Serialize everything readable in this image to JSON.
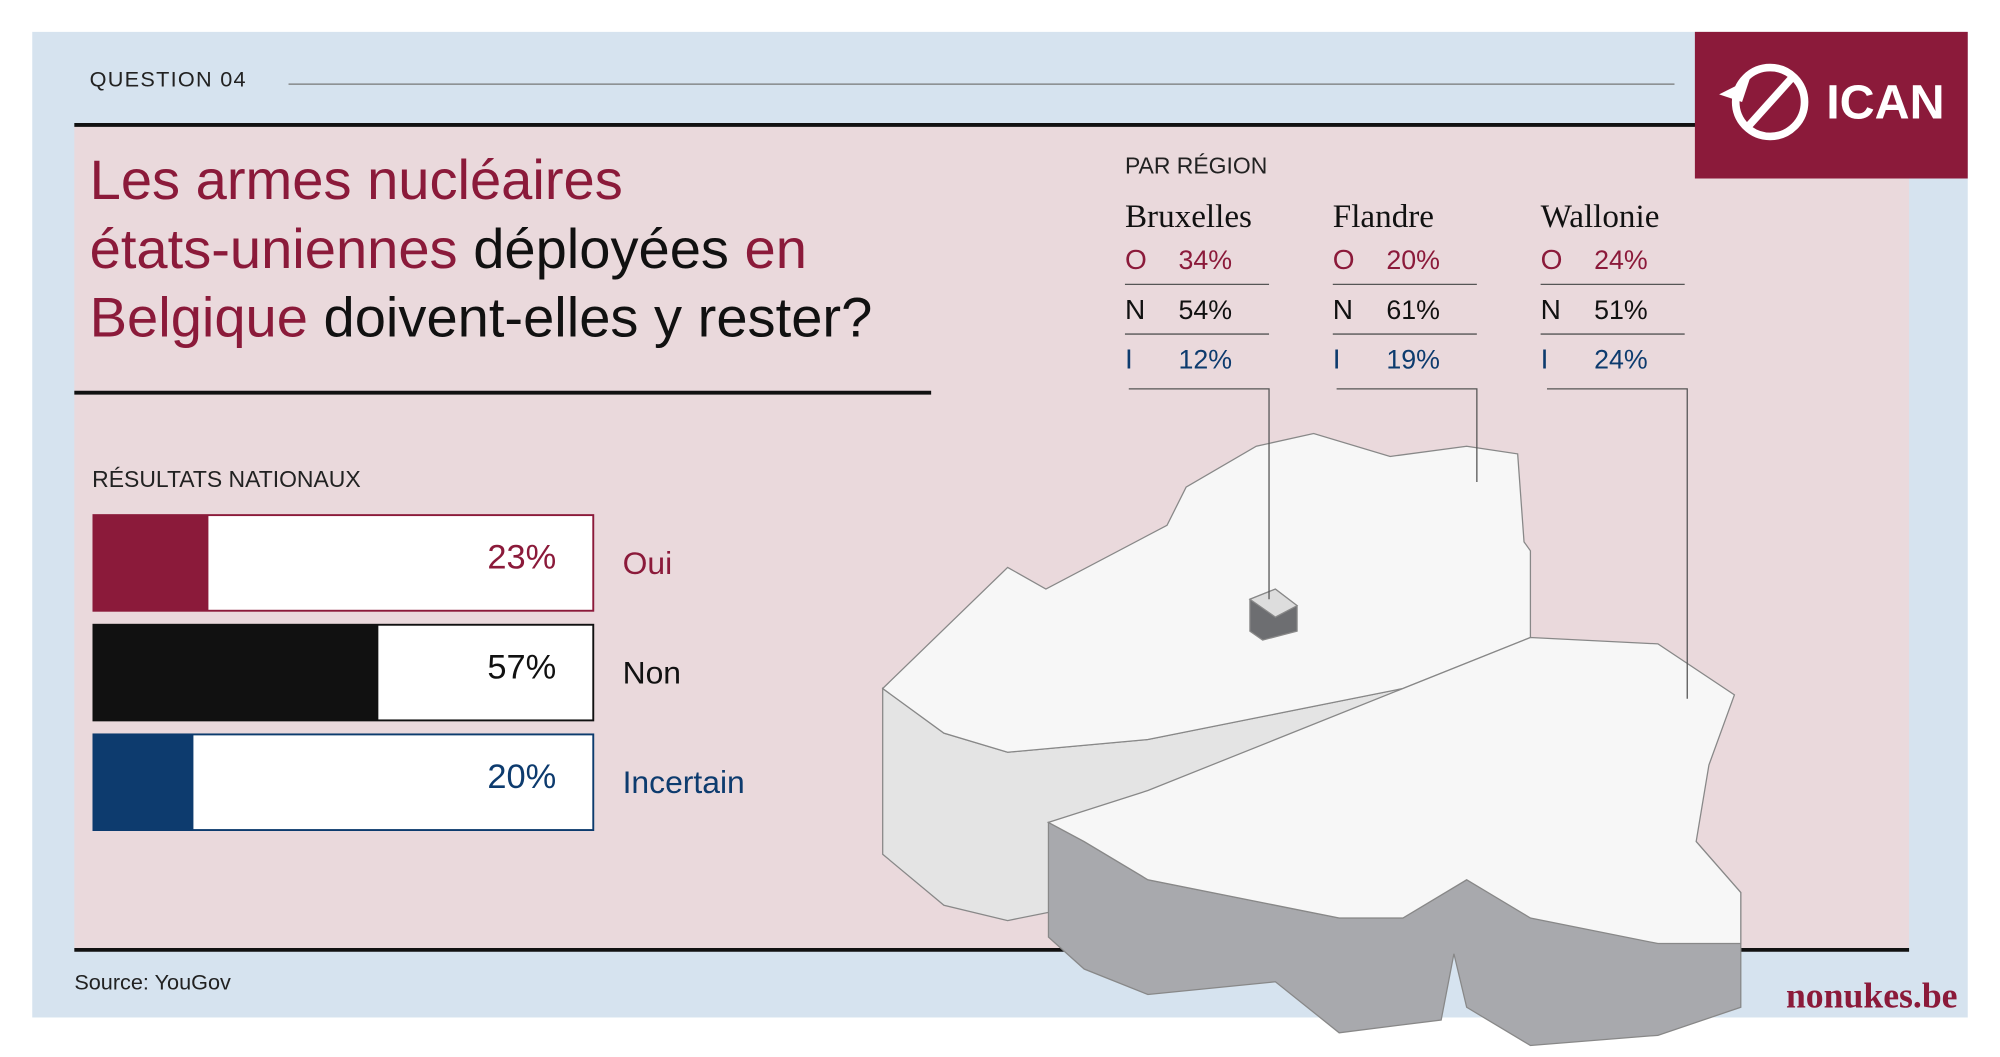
{
  "question_label": "QUESTION 04",
  "logo": "ICAN",
  "title_lines": [
    [
      {
        "text": "Les armes nucléaires",
        "accent": true
      }
    ],
    [
      {
        "text": "états-uniennes",
        "accent": true
      },
      {
        "text": " déployées",
        "accent": false
      },
      {
        "text": " en",
        "accent": true
      }
    ],
    [
      {
        "text": "Belgique",
        "accent": true
      },
      {
        "text": " doivent-elles y rester?",
        "accent": false
      }
    ]
  ],
  "chart_data": {
    "type": "bar",
    "orientation": "horizontal",
    "title": "RÉSULTATS NATIONAUX",
    "categories": [
      "Oui",
      "Non",
      "Incertain"
    ],
    "values": [
      23,
      57,
      20
    ],
    "value_labels": [
      "23%",
      "57%",
      "20%"
    ],
    "colors": [
      "#8b1a3a",
      "#111111",
      "#0d3b6e"
    ],
    "xlim": [
      0,
      100
    ]
  },
  "regions": {
    "title": "PAR RÉGION",
    "items": [
      {
        "name": "Bruxelles",
        "rows": [
          {
            "code": "O",
            "value": "34%",
            "color": "#8b1a3a"
          },
          {
            "code": "N",
            "value": "54%",
            "color": "#111111"
          },
          {
            "code": "I",
            "value": "12%",
            "color": "#0d3b6e"
          }
        ]
      },
      {
        "name": "Flandre",
        "rows": [
          {
            "code": "O",
            "value": "20%",
            "color": "#8b1a3a"
          },
          {
            "code": "N",
            "value": "61%",
            "color": "#111111"
          },
          {
            "code": "I",
            "value": "19%",
            "color": "#0d3b6e"
          }
        ]
      },
      {
        "name": "Wallonie",
        "rows": [
          {
            "code": "O",
            "value": "24%",
            "color": "#8b1a3a"
          },
          {
            "code": "N",
            "value": "51%",
            "color": "#111111"
          },
          {
            "code": "I",
            "value": "24%",
            "color": "#0d3b6e"
          }
        ]
      }
    ]
  },
  "source": "Source: YouGov",
  "website": "nonukes.be"
}
